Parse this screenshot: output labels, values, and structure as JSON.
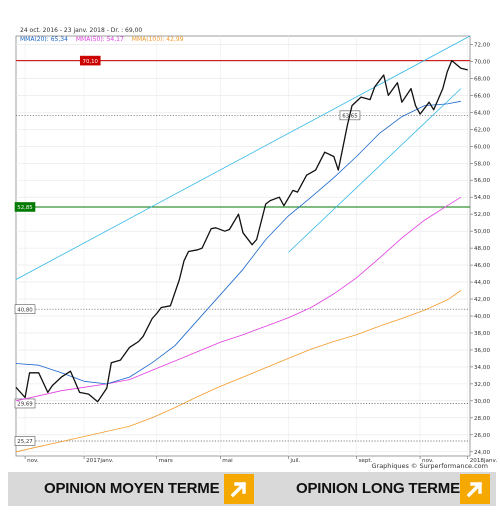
{
  "header": {
    "date_range": "24 oct. 2016 - 23 janv. 2018 - Dr. : 69,00",
    "ma_legend": [
      {
        "label": "MMA(20)",
        "value": "65,34",
        "color": "#1a66cc"
      },
      {
        "label": "MMA(50)",
        "value": "54,17",
        "color": "#e23de2"
      },
      {
        "label": "MMA(100)",
        "value": "42,99",
        "color": "#f39a2b"
      }
    ]
  },
  "footer": {
    "credit": "Graphiques © Surperformance.com",
    "opinion_medium": "OPINION MOYEN TERME",
    "opinion_long": "OPINION LONG TERME",
    "arrow_icon": "arrow-up-right-icon",
    "arrow_color": "#f5a800"
  },
  "chart_data": {
    "type": "line",
    "ylim": [
      23.5,
      73
    ],
    "y_ticks": [
      "24,00",
      "26,00",
      "28,00",
      "30,00",
      "32,00",
      "34,00",
      "36,00",
      "38,00",
      "40,00",
      "42,00",
      "44,00",
      "46,00",
      "48,00",
      "50,00",
      "52,00",
      "54,00",
      "56,00",
      "58,00",
      "60,00",
      "62,00",
      "64,00",
      "66,00",
      "68,00",
      "70,00",
      "72,00"
    ],
    "x_labels": [
      {
        "label": "nov.",
        "t": 0.02
      },
      {
        "label": "2017janv.",
        "t": 0.15
      },
      {
        "label": "mars",
        "t": 0.31
      },
      {
        "label": "mai",
        "t": 0.45
      },
      {
        "label": "juil.",
        "t": 0.6
      },
      {
        "label": "sept.",
        "t": 0.75
      },
      {
        "label": "nov.",
        "t": 0.89
      },
      {
        "label": "2018janv.",
        "t": 0.995
      }
    ],
    "levels": [
      {
        "value": 70.1,
        "label": "70,10",
        "style": "resistance",
        "color": "#cc0000"
      },
      {
        "value": 63.65,
        "label": "63,65",
        "style": "dotted",
        "color": "#555555"
      },
      {
        "value": 52.85,
        "label": "52,85",
        "style": "support",
        "color": "#007a00"
      },
      {
        "value": 40.8,
        "label": "40,80",
        "style": "dotted",
        "color": "#555555"
      },
      {
        "value": 29.69,
        "label": "29,69",
        "style": "dotted",
        "color": "#555555"
      },
      {
        "value": 25.27,
        "label": "25,27",
        "style": "dotted",
        "color": "#555555"
      }
    ],
    "series": [
      {
        "role": "price",
        "color": "#111111",
        "points": [
          [
            0.0,
            31.6
          ],
          [
            0.02,
            30.4
          ],
          [
            0.03,
            33.3
          ],
          [
            0.05,
            33.3
          ],
          [
            0.07,
            31.0
          ],
          [
            0.08,
            31.8
          ],
          [
            0.1,
            32.8
          ],
          [
            0.12,
            33.5
          ],
          [
            0.14,
            31.0
          ],
          [
            0.16,
            30.8
          ],
          [
            0.18,
            29.9
          ],
          [
            0.2,
            31.5
          ],
          [
            0.21,
            34.5
          ],
          [
            0.23,
            34.8
          ],
          [
            0.25,
            36.3
          ],
          [
            0.27,
            37.0
          ],
          [
            0.28,
            37.6
          ],
          [
            0.3,
            39.7
          ],
          [
            0.31,
            40.3
          ],
          [
            0.32,
            41.0
          ],
          [
            0.34,
            41.2
          ],
          [
            0.36,
            44.3
          ],
          [
            0.37,
            46.5
          ],
          [
            0.38,
            47.6
          ],
          [
            0.4,
            47.8
          ],
          [
            0.41,
            48.0
          ],
          [
            0.43,
            50.3
          ],
          [
            0.44,
            50.4
          ],
          [
            0.46,
            50.0
          ],
          [
            0.47,
            50.2
          ],
          [
            0.49,
            52.0
          ],
          [
            0.5,
            49.8
          ],
          [
            0.52,
            48.4
          ],
          [
            0.53,
            49.0
          ],
          [
            0.55,
            53.2
          ],
          [
            0.56,
            53.6
          ],
          [
            0.58,
            54.0
          ],
          [
            0.59,
            53.0
          ],
          [
            0.61,
            54.8
          ],
          [
            0.62,
            54.6
          ],
          [
            0.64,
            56.6
          ],
          [
            0.66,
            57.2
          ],
          [
            0.68,
            59.3
          ],
          [
            0.7,
            58.8
          ],
          [
            0.71,
            57.2
          ],
          [
            0.73,
            62.5
          ],
          [
            0.74,
            64.8
          ],
          [
            0.76,
            65.8
          ],
          [
            0.78,
            65.5
          ],
          [
            0.79,
            67.0
          ],
          [
            0.81,
            68.4
          ],
          [
            0.82,
            66.0
          ],
          [
            0.84,
            67.5
          ],
          [
            0.85,
            65.2
          ],
          [
            0.87,
            66.8
          ],
          [
            0.88,
            64.8
          ],
          [
            0.89,
            63.8
          ],
          [
            0.91,
            65.2
          ],
          [
            0.92,
            64.3
          ],
          [
            0.94,
            66.8
          ],
          [
            0.95,
            68.8
          ],
          [
            0.96,
            70.1
          ],
          [
            0.98,
            69.2
          ],
          [
            0.995,
            69.0
          ]
        ]
      },
      {
        "role": "ma20",
        "color": "#1a66cc",
        "points": [
          [
            0.0,
            34.4
          ],
          [
            0.05,
            34.2
          ],
          [
            0.1,
            33.3
          ],
          [
            0.15,
            32.3
          ],
          [
            0.2,
            32.0
          ],
          [
            0.25,
            32.8
          ],
          [
            0.3,
            34.5
          ],
          [
            0.35,
            36.5
          ],
          [
            0.4,
            39.5
          ],
          [
            0.45,
            42.5
          ],
          [
            0.5,
            45.5
          ],
          [
            0.55,
            49.0
          ],
          [
            0.6,
            51.8
          ],
          [
            0.65,
            54.0
          ],
          [
            0.7,
            56.3
          ],
          [
            0.75,
            58.8
          ],
          [
            0.8,
            61.5
          ],
          [
            0.85,
            63.5
          ],
          [
            0.9,
            64.8
          ],
          [
            0.95,
            65.0
          ],
          [
            0.98,
            65.3
          ]
        ]
      },
      {
        "role": "ma50",
        "color": "#e23de2",
        "points": [
          [
            0.0,
            30.0
          ],
          [
            0.05,
            30.6
          ],
          [
            0.1,
            31.2
          ],
          [
            0.15,
            31.6
          ],
          [
            0.2,
            32.0
          ],
          [
            0.25,
            32.5
          ],
          [
            0.3,
            33.6
          ],
          [
            0.35,
            34.7
          ],
          [
            0.4,
            35.8
          ],
          [
            0.45,
            36.9
          ],
          [
            0.5,
            37.8
          ],
          [
            0.55,
            38.8
          ],
          [
            0.6,
            39.8
          ],
          [
            0.65,
            41.0
          ],
          [
            0.7,
            42.6
          ],
          [
            0.75,
            44.5
          ],
          [
            0.8,
            46.8
          ],
          [
            0.85,
            49.2
          ],
          [
            0.9,
            51.3
          ],
          [
            0.95,
            53.0
          ],
          [
            0.98,
            54.0
          ]
        ]
      },
      {
        "role": "ma100",
        "color": "#f39a2b",
        "points": [
          [
            0.0,
            24.0
          ],
          [
            0.05,
            24.6
          ],
          [
            0.1,
            25.2
          ],
          [
            0.15,
            25.8
          ],
          [
            0.2,
            26.4
          ],
          [
            0.25,
            27.0
          ],
          [
            0.3,
            28.0
          ],
          [
            0.35,
            29.2
          ],
          [
            0.4,
            30.5
          ],
          [
            0.45,
            31.7
          ],
          [
            0.5,
            32.8
          ],
          [
            0.55,
            33.9
          ],
          [
            0.6,
            35.0
          ],
          [
            0.65,
            36.1
          ],
          [
            0.7,
            37.0
          ],
          [
            0.75,
            37.8
          ],
          [
            0.8,
            38.8
          ],
          [
            0.85,
            39.7
          ],
          [
            0.9,
            40.7
          ],
          [
            0.95,
            41.9
          ],
          [
            0.98,
            43.0
          ]
        ]
      }
    ],
    "trendlines": [
      {
        "role": "upper-channel",
        "color": "#33b8e8",
        "from": [
          0.0,
          44.3
        ],
        "to": [
          1.0,
          73.0
        ]
      },
      {
        "role": "lower-channel",
        "color": "#33b8e8",
        "from": [
          0.6,
          47.5
        ],
        "to": [
          0.98,
          66.8
        ]
      }
    ]
  }
}
